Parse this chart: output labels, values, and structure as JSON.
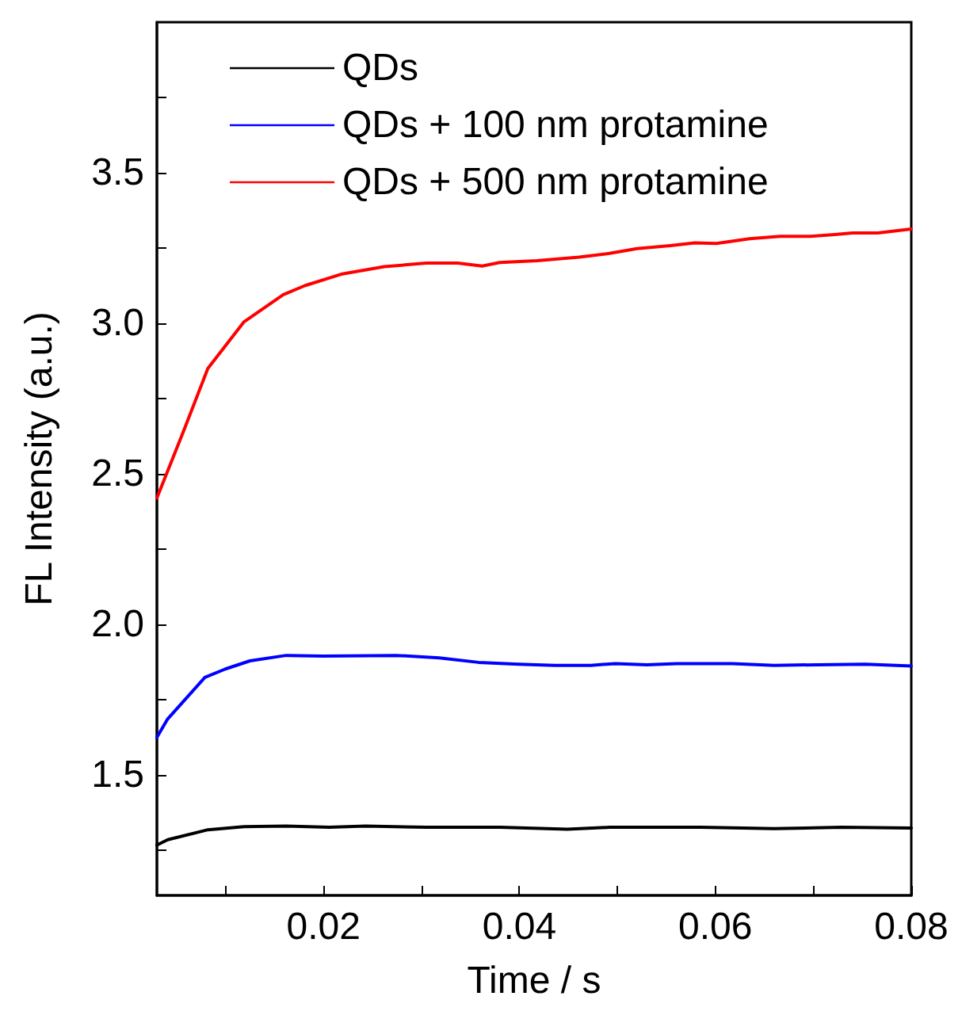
{
  "chart_data": {
    "type": "line",
    "xlabel": "Time / s",
    "ylabel": "FL Intensity (a.u.)",
    "xlim": [
      0.003,
      0.08
    ],
    "ylim": [
      1.1,
      4.0
    ],
    "xticks": [
      {
        "value": 0.01,
        "label": null
      },
      0.02,
      {
        "value": 0.03,
        "label": null
      },
      0.04,
      {
        "value": 0.05,
        "label": null
      },
      0.06,
      {
        "value": 0.07,
        "label": null
      },
      0.08
    ],
    "yticks": [
      {
        "value": 1.25,
        "label": null
      },
      1.5,
      {
        "value": 1.75,
        "label": null
      },
      {
        "value": 2,
        "label": "2.0"
      },
      {
        "value": 2.25,
        "label": null
      },
      2.5,
      {
        "value": 2.75,
        "label": null
      },
      {
        "value": 3,
        "label": "3.0"
      },
      {
        "value": 3.25,
        "label": null
      },
      3.5,
      {
        "value": 3.75,
        "label": null
      }
    ],
    "grid": false,
    "legend": "top left",
    "marker": "none",
    "line_style": "solid",
    "series": [
      {
        "name": "QDs",
        "color": "#000000",
        "x": [
          0.003,
          0.0041,
          0.0082,
          0.0119,
          0.0162,
          0.0206,
          0.0243,
          0.0305,
          0.038,
          0.0449,
          0.0492,
          0.0585,
          0.066,
          0.0729,
          0.08
        ],
        "values": [
          1.267,
          1.285,
          1.318,
          1.328,
          1.33,
          1.326,
          1.33,
          1.326,
          1.326,
          1.32,
          1.326,
          1.326,
          1.322,
          1.326,
          1.324
        ]
      },
      {
        "name": "QDs + 100 nm protamine",
        "color": "#0000ff",
        "x": [
          0.003,
          0.0041,
          0.0079,
          0.01,
          0.0125,
          0.0162,
          0.02,
          0.0274,
          0.0318,
          0.0358,
          0.0399,
          0.0436,
          0.0473,
          0.0498,
          0.053,
          0.0561,
          0.0617,
          0.066,
          0.0704,
          0.0753,
          0.08
        ],
        "values": [
          1.625,
          1.686,
          1.824,
          1.852,
          1.879,
          1.897,
          1.895,
          1.897,
          1.889,
          1.874,
          1.868,
          1.864,
          1.864,
          1.87,
          1.866,
          1.87,
          1.87,
          1.864,
          1.866,
          1.868,
          1.862
        ]
      },
      {
        "name": "QDs + 500 nm protamine",
        "color": "#ff0000",
        "x": [
          0.003,
          0.0057,
          0.0082,
          0.0119,
          0.0159,
          0.0181,
          0.0218,
          0.0262,
          0.0305,
          0.0337,
          0.0362,
          0.038,
          0.0418,
          0.0461,
          0.0492,
          0.052,
          0.0554,
          0.0579,
          0.0601,
          0.0635,
          0.0666,
          0.0697,
          0.0722,
          0.074,
          0.0766,
          0.08
        ],
        "values": [
          2.42,
          2.64,
          2.85,
          3.005,
          3.095,
          3.125,
          3.163,
          3.188,
          3.2,
          3.2,
          3.19,
          3.202,
          3.208,
          3.22,
          3.232,
          3.248,
          3.258,
          3.267,
          3.265,
          3.281,
          3.289,
          3.289,
          3.295,
          3.3,
          3.3,
          3.313
        ]
      }
    ]
  }
}
